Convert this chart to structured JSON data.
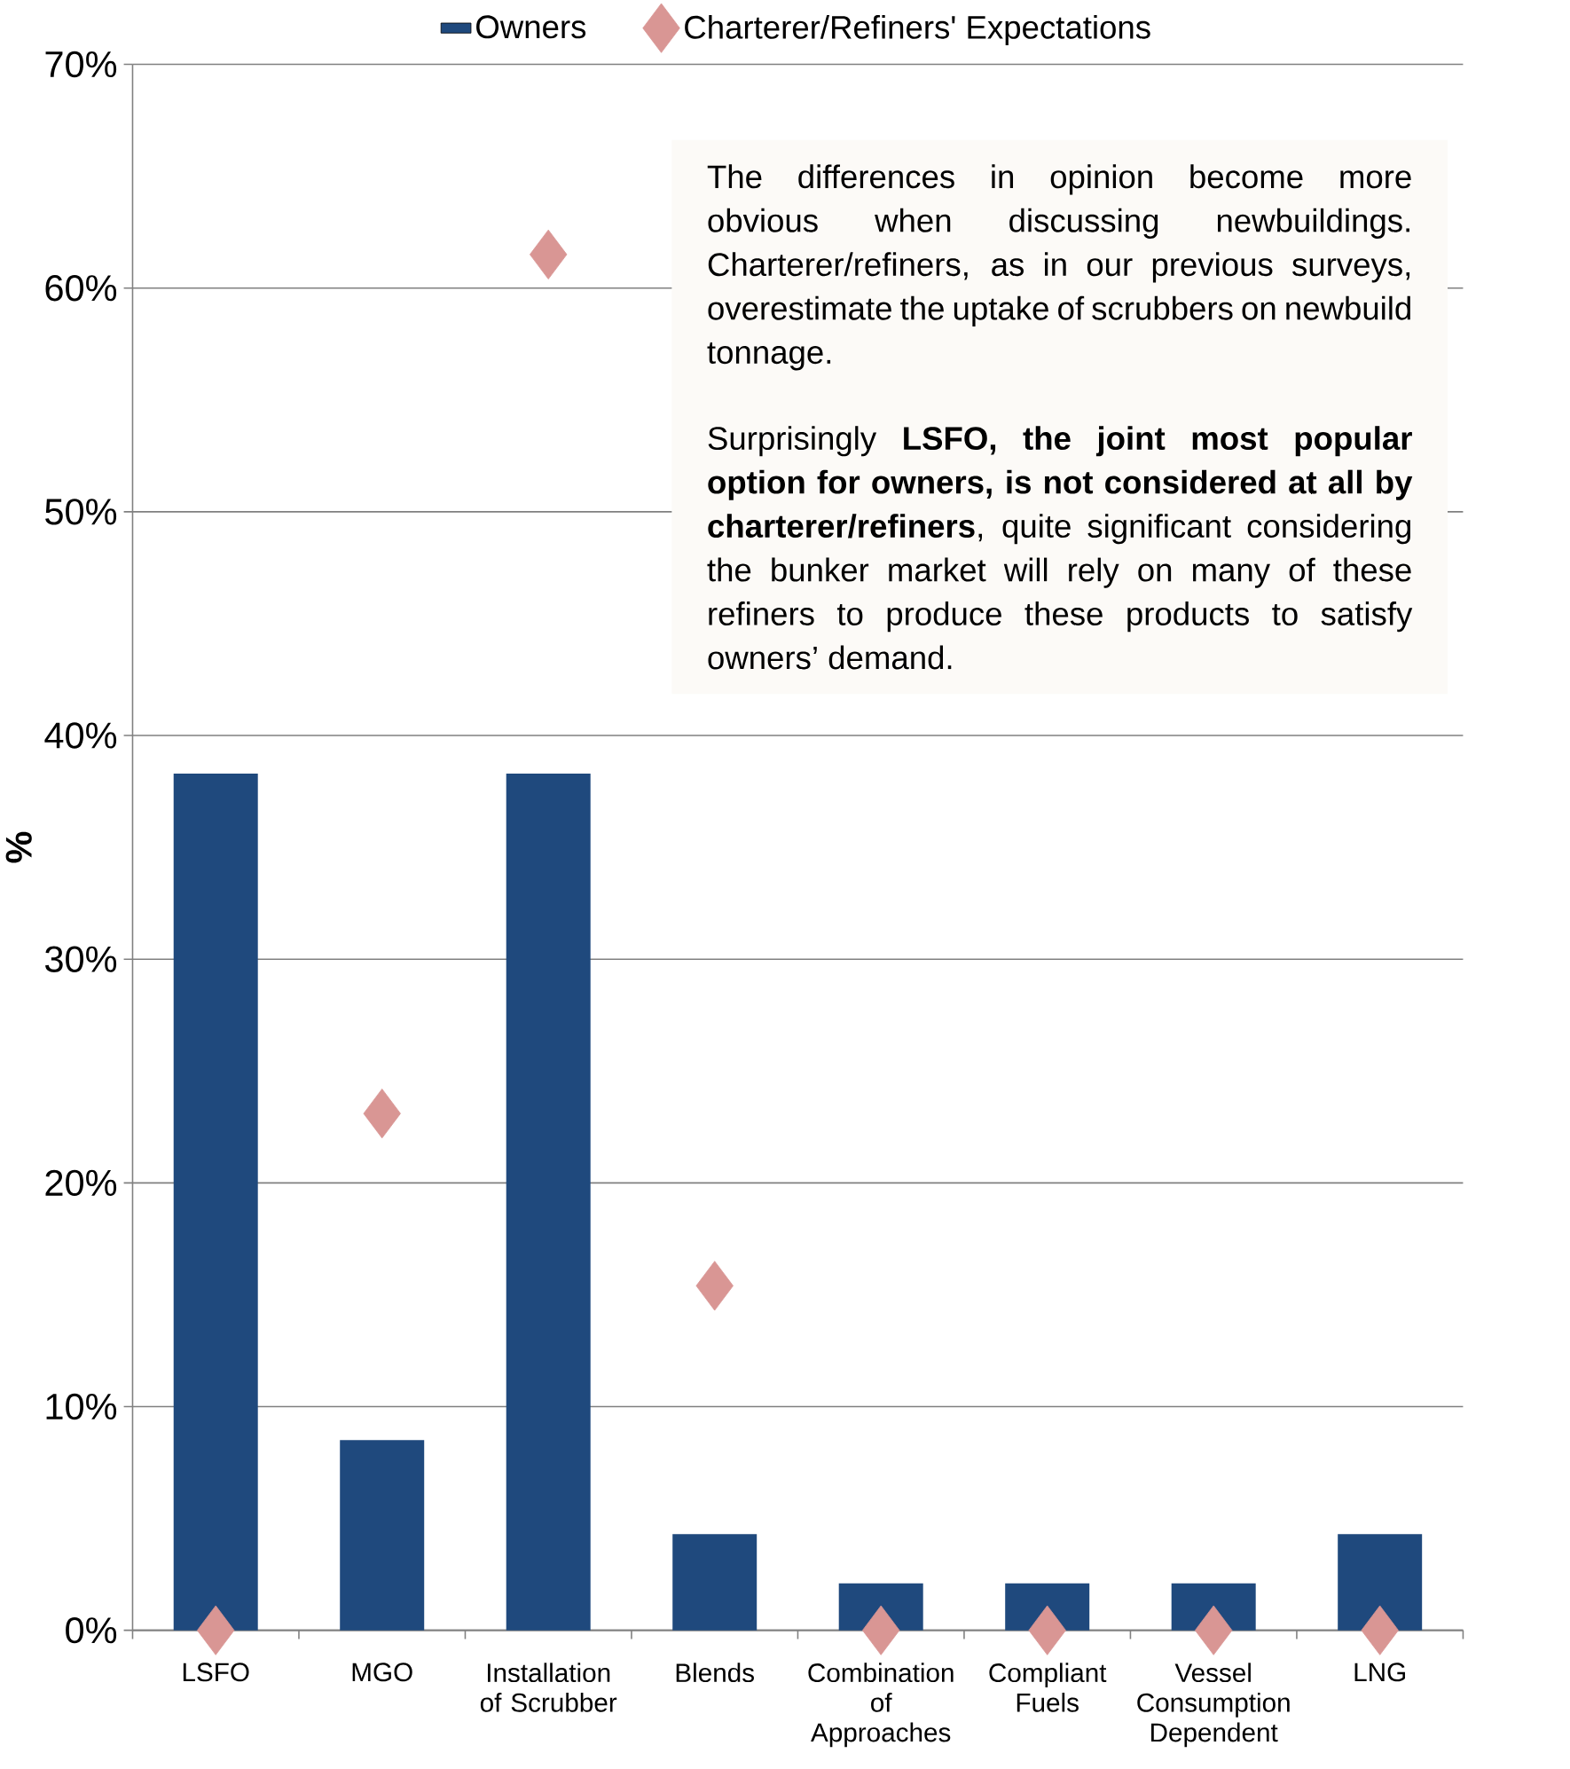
{
  "chart_data": {
    "type": "bar",
    "ylabel": "%",
    "categories": [
      "LSFO",
      "MGO",
      "Installation of Scrubber",
      "Blends",
      "Combination of Approaches",
      "Compliant Fuels",
      "Vessel Consumption Dependent",
      "LNG"
    ],
    "series": [
      {
        "name": "Owners",
        "type": "bar",
        "color": "#1f497d",
        "values": [
          38.3,
          8.5,
          38.3,
          4.3,
          2.1,
          2.1,
          2.1,
          4.3
        ]
      },
      {
        "name": "Charterer/Refiners' Expectations",
        "type": "scatter",
        "marker": "diamond",
        "color": "#d99694",
        "values": [
          0,
          23.1,
          61.5,
          15.4,
          0,
          0,
          0,
          0
        ]
      }
    ],
    "ylim": [
      0,
      70
    ],
    "yticks": [
      {
        "value": 0,
        "label": "0%"
      },
      {
        "value": 10,
        "label": "10%"
      },
      {
        "value": 20,
        "label": "20%"
      },
      {
        "value": 30,
        "label": "30%"
      },
      {
        "value": 40,
        "label": "40%"
      },
      {
        "value": 50,
        "label": "50%"
      },
      {
        "value": 60,
        "label": "60%"
      },
      {
        "value": 70,
        "label": "70%"
      }
    ],
    "grid": "y",
    "legend": "top",
    "annotations": [
      "The differences in opinion become more obvious when discussing newbuildings. Charterer/refiners, as in our previous surveys, overestimate the uptake of scrubbers on newbuild tonnage.",
      "Surprisingly **LSFO, the joint most popular option for owners, is not considered at all by charterer/refiners**, quite significant considering the bunker market will rely on many of these refiners to produce these products to satisfy owners’ demand."
    ]
  }
}
